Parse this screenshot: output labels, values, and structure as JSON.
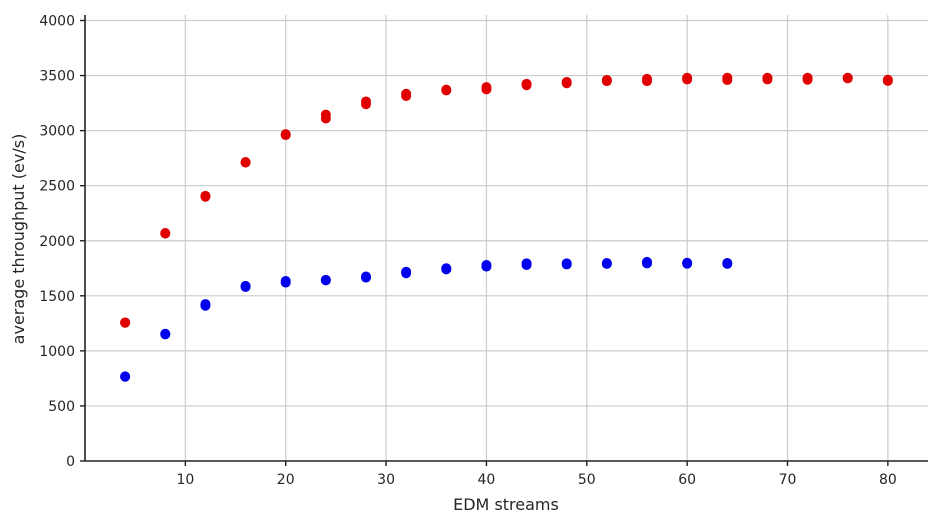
{
  "chart_data": {
    "type": "scatter",
    "title": "",
    "xlabel": "EDM streams",
    "ylabel": "average throughput (ev/s)",
    "xlim": [
      0,
      84
    ],
    "ylim": [
      0,
      4050
    ],
    "xticks": [
      10,
      20,
      30,
      40,
      50,
      60,
      70,
      80
    ],
    "yticks": [
      0,
      500,
      1000,
      1500,
      2000,
      2500,
      3000,
      3500,
      4000
    ],
    "grid": true,
    "legend": "none",
    "series": [
      {
        "color": "#e00000",
        "points": [
          [
            4,
            1255
          ],
          [
            4,
            1258
          ],
          [
            8,
            2065
          ],
          [
            8,
            2070
          ],
          [
            12,
            2400
          ],
          [
            12,
            2408
          ],
          [
            16,
            2710
          ],
          [
            16,
            2715
          ],
          [
            20,
            2960
          ],
          [
            20,
            2968
          ],
          [
            24,
            3110
          ],
          [
            24,
            3145
          ],
          [
            28,
            3240
          ],
          [
            28,
            3265
          ],
          [
            32,
            3315
          ],
          [
            32,
            3335
          ],
          [
            36,
            3365
          ],
          [
            36,
            3372
          ],
          [
            40,
            3375
          ],
          [
            40,
            3395
          ],
          [
            44,
            3412
          ],
          [
            44,
            3425
          ],
          [
            48,
            3430
          ],
          [
            48,
            3442
          ],
          [
            52,
            3450
          ],
          [
            52,
            3460
          ],
          [
            56,
            3450
          ],
          [
            56,
            3470
          ],
          [
            60,
            3465
          ],
          [
            60,
            3480
          ],
          [
            64,
            3460
          ],
          [
            64,
            3480
          ],
          [
            68,
            3465
          ],
          [
            68,
            3480
          ],
          [
            72,
            3462
          ],
          [
            72,
            3480
          ],
          [
            76,
            3475
          ],
          [
            76,
            3480
          ],
          [
            80,
            3452
          ],
          [
            80,
            3462
          ]
        ]
      },
      {
        "color": "#0000ee",
        "points": [
          [
            4,
            765
          ],
          [
            4,
            768
          ],
          [
            8,
            1150
          ],
          [
            8,
            1155
          ],
          [
            12,
            1410
          ],
          [
            12,
            1425
          ],
          [
            16,
            1580
          ],
          [
            16,
            1590
          ],
          [
            20,
            1620
          ],
          [
            20,
            1635
          ],
          [
            24,
            1640
          ],
          [
            24,
            1645
          ],
          [
            28,
            1665
          ],
          [
            28,
            1675
          ],
          [
            32,
            1705
          ],
          [
            32,
            1718
          ],
          [
            36,
            1740
          ],
          [
            36,
            1750
          ],
          [
            40,
            1765
          ],
          [
            40,
            1780
          ],
          [
            44,
            1780
          ],
          [
            44,
            1795
          ],
          [
            48,
            1785
          ],
          [
            48,
            1795
          ],
          [
            52,
            1790
          ],
          [
            52,
            1798
          ],
          [
            56,
            1795
          ],
          [
            56,
            1808
          ],
          [
            60,
            1792
          ],
          [
            60,
            1800
          ],
          [
            64,
            1790
          ],
          [
            64,
            1798
          ]
        ]
      }
    ]
  }
}
